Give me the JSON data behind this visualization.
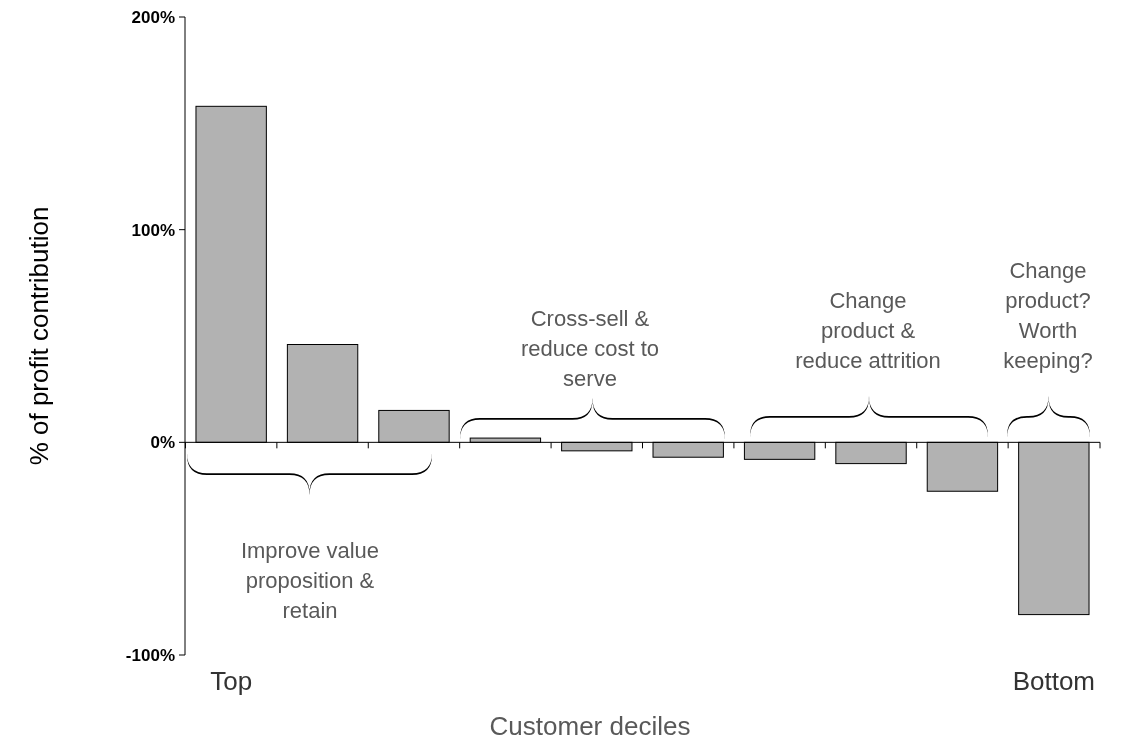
{
  "chart_data": {
    "type": "bar",
    "xlabel": "Customer deciles",
    "ylabel": "% of profit contribution",
    "categories": [
      "Top",
      null,
      null,
      null,
      null,
      null,
      null,
      null,
      null,
      "Bottom"
    ],
    "values": [
      158,
      46,
      15,
      2,
      -4,
      -7,
      -8,
      -10,
      -23,
      -81
    ],
    "color": "#b2b2b2",
    "ylim": [
      -100,
      200
    ],
    "yticks": [
      {
        "value": -100,
        "label": "-100%"
      },
      {
        "value": 0,
        "label": "0%"
      },
      {
        "value": 100,
        "label": "100%"
      },
      {
        "value": 200,
        "label": "200%"
      }
    ],
    "annotations": [
      "Improve value\nproposition &\nretain",
      "Cross-sell &\nreduce cost to\nserve",
      "Change\nproduct &\nreduce attrition",
      "Change\nproduct?\nWorth\nkeeping?"
    ]
  }
}
